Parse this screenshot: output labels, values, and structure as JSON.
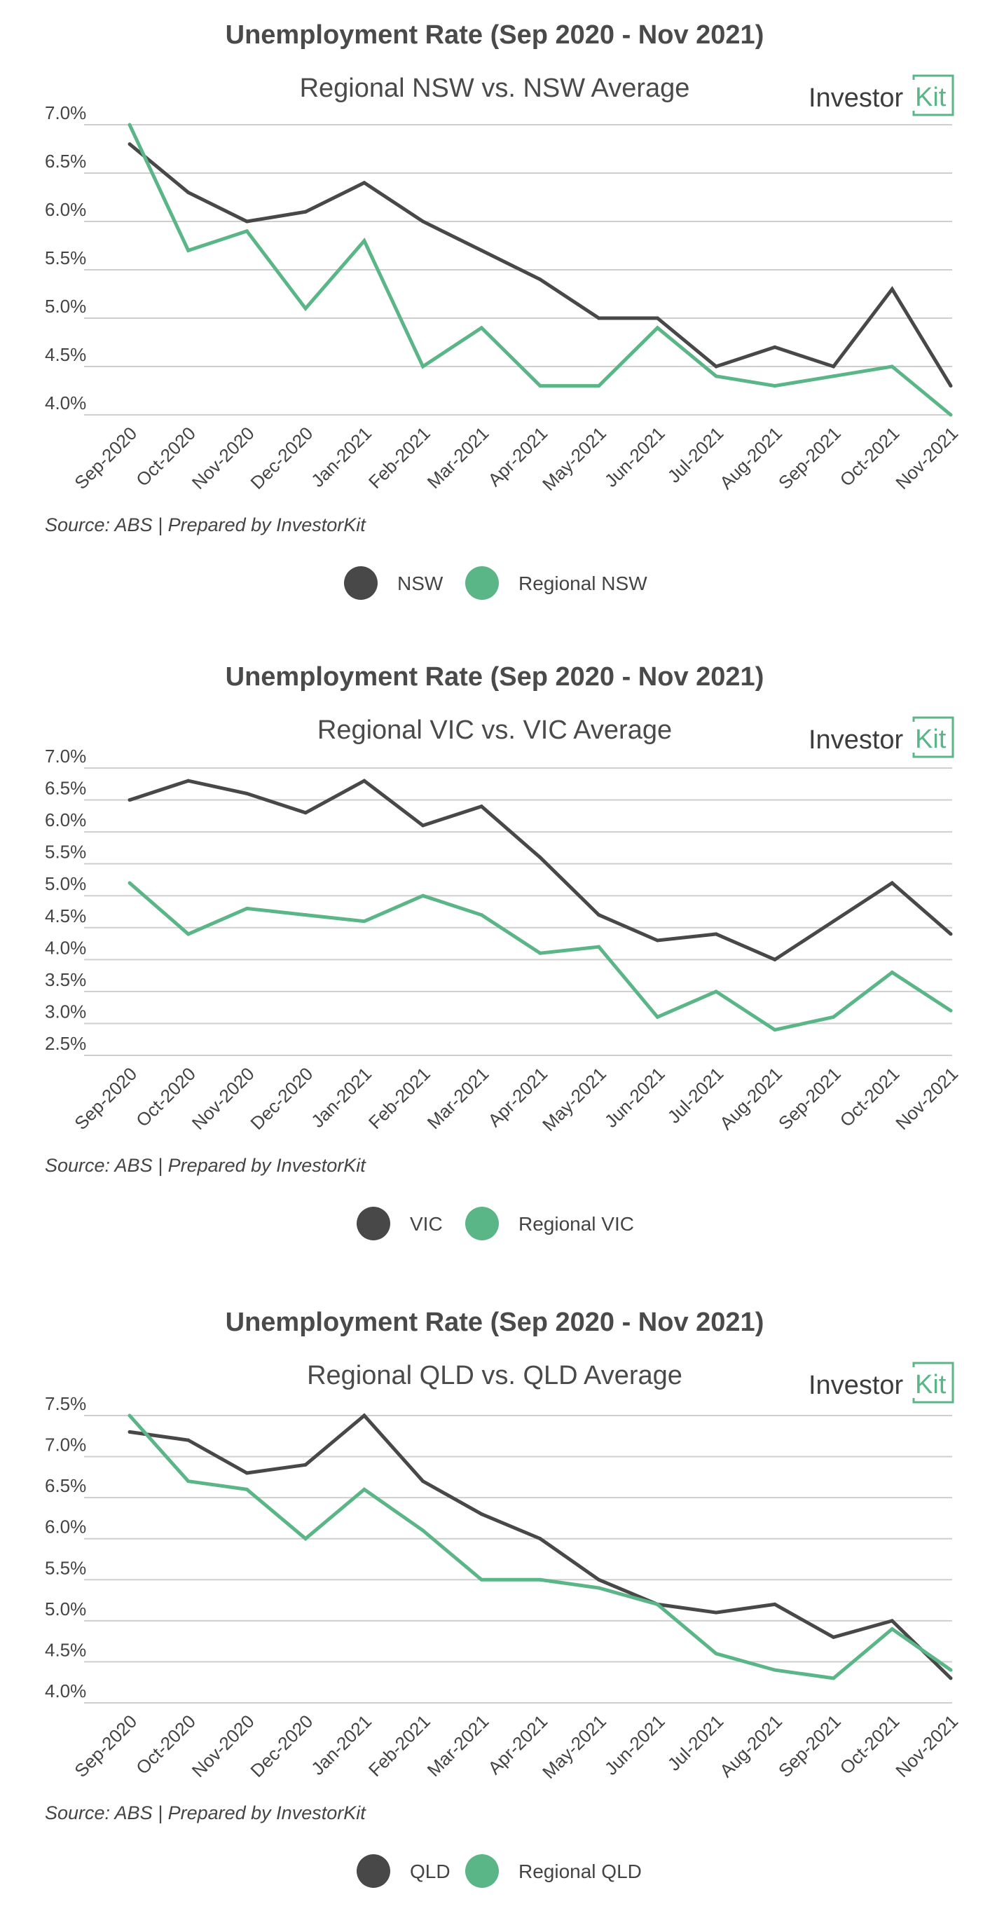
{
  "colors": {
    "state": "#484848",
    "regional": "#5ab587",
    "grid": "#cfcfcf",
    "text": "#444444"
  },
  "logo": {
    "word": "Investor",
    "mark": "Kit"
  },
  "chart_data": [
    {
      "type": "line",
      "title": "Unemployment Rate (Sep 2020 - Nov 2021)",
      "subtitle": "Regional NSW vs. NSW Average",
      "source": "Source: ABS | Prepared by InvestorKit",
      "categories": [
        "Sep-2020",
        "Oct-2020",
        "Nov-2020",
        "Dec-2020",
        "Jan-2021",
        "Feb-2021",
        "Mar-2021",
        "Apr-2021",
        "May-2021",
        "Jun-2021",
        "Jul-2021",
        "Aug-2021",
        "Sep-2021",
        "Oct-2021",
        "Nov-2021"
      ],
      "yticks": [
        "4.0%",
        "4.5%",
        "5.0%",
        "5.5%",
        "6.0%",
        "6.5%",
        "7.0%"
      ],
      "ylim": [
        4.0,
        7.0
      ],
      "grid": true,
      "legend_position": "bottom-center",
      "series": [
        {
          "name": "NSW",
          "color_key": "state",
          "values": [
            6.8,
            6.3,
            6.0,
            6.1,
            6.4,
            6.0,
            5.7,
            5.4,
            5.0,
            5.0,
            4.5,
            4.7,
            4.5,
            5.3,
            4.3
          ]
        },
        {
          "name": "Regional NSW",
          "color_key": "regional",
          "values": [
            7.0,
            5.7,
            5.9,
            5.1,
            5.8,
            4.5,
            4.9,
            4.3,
            4.3,
            4.9,
            4.4,
            4.3,
            4.4,
            4.5,
            4.0
          ]
        }
      ]
    },
    {
      "type": "line",
      "title": "Unemployment Rate (Sep 2020 - Nov 2021)",
      "subtitle": "Regional VIC vs. VIC Average",
      "source": "Source: ABS | Prepared by InvestorKit",
      "categories": [
        "Sep-2020",
        "Oct-2020",
        "Nov-2020",
        "Dec-2020",
        "Jan-2021",
        "Feb-2021",
        "Mar-2021",
        "Apr-2021",
        "May-2021",
        "Jun-2021",
        "Jul-2021",
        "Aug-2021",
        "Sep-2021",
        "Oct-2021",
        "Nov-2021"
      ],
      "yticks": [
        "2.5%",
        "3.0%",
        "3.5%",
        "4.0%",
        "4.5%",
        "5.0%",
        "5.5%",
        "6.0%",
        "6.5%",
        "7.0%"
      ],
      "ylim": [
        2.5,
        7.0
      ],
      "grid": true,
      "legend_position": "bottom-center",
      "series": [
        {
          "name": "VIC",
          "color_key": "state",
          "values": [
            6.5,
            6.8,
            6.6,
            6.3,
            6.8,
            6.1,
            6.4,
            5.6,
            4.7,
            4.3,
            4.4,
            4.0,
            4.6,
            5.2,
            4.4
          ]
        },
        {
          "name": "Regional VIC",
          "color_key": "regional",
          "values": [
            5.2,
            4.4,
            4.8,
            4.7,
            4.6,
            5.0,
            4.7,
            4.1,
            4.2,
            3.1,
            3.5,
            2.9,
            3.1,
            3.8,
            3.2
          ]
        }
      ]
    },
    {
      "type": "line",
      "title": "Unemployment Rate (Sep 2020 - Nov 2021)",
      "subtitle": "Regional QLD vs. QLD Average",
      "source": "Source: ABS | Prepared by InvestorKit",
      "categories": [
        "Sep-2020",
        "Oct-2020",
        "Nov-2020",
        "Dec-2020",
        "Jan-2021",
        "Feb-2021",
        "Mar-2021",
        "Apr-2021",
        "May-2021",
        "Jun-2021",
        "Jul-2021",
        "Aug-2021",
        "Sep-2021",
        "Oct-2021",
        "Nov-2021"
      ],
      "yticks": [
        "4.0%",
        "4.5%",
        "5.0%",
        "5.5%",
        "6.0%",
        "6.5%",
        "7.0%",
        "7.5%"
      ],
      "ylim": [
        4.0,
        7.5
      ],
      "grid": true,
      "legend_position": "bottom-center",
      "series": [
        {
          "name": "QLD",
          "color_key": "state",
          "values": [
            7.3,
            7.2,
            6.8,
            6.9,
            7.5,
            6.7,
            6.3,
            6.0,
            5.5,
            5.2,
            5.1,
            5.2,
            4.8,
            5.0,
            4.3
          ]
        },
        {
          "name": "Regional QLD",
          "color_key": "regional",
          "values": [
            7.5,
            6.7,
            6.6,
            6.0,
            6.6,
            6.1,
            5.5,
            5.5,
            5.4,
            5.2,
            4.6,
            4.4,
            4.3,
            4.9,
            4.4
          ]
        }
      ]
    }
  ]
}
